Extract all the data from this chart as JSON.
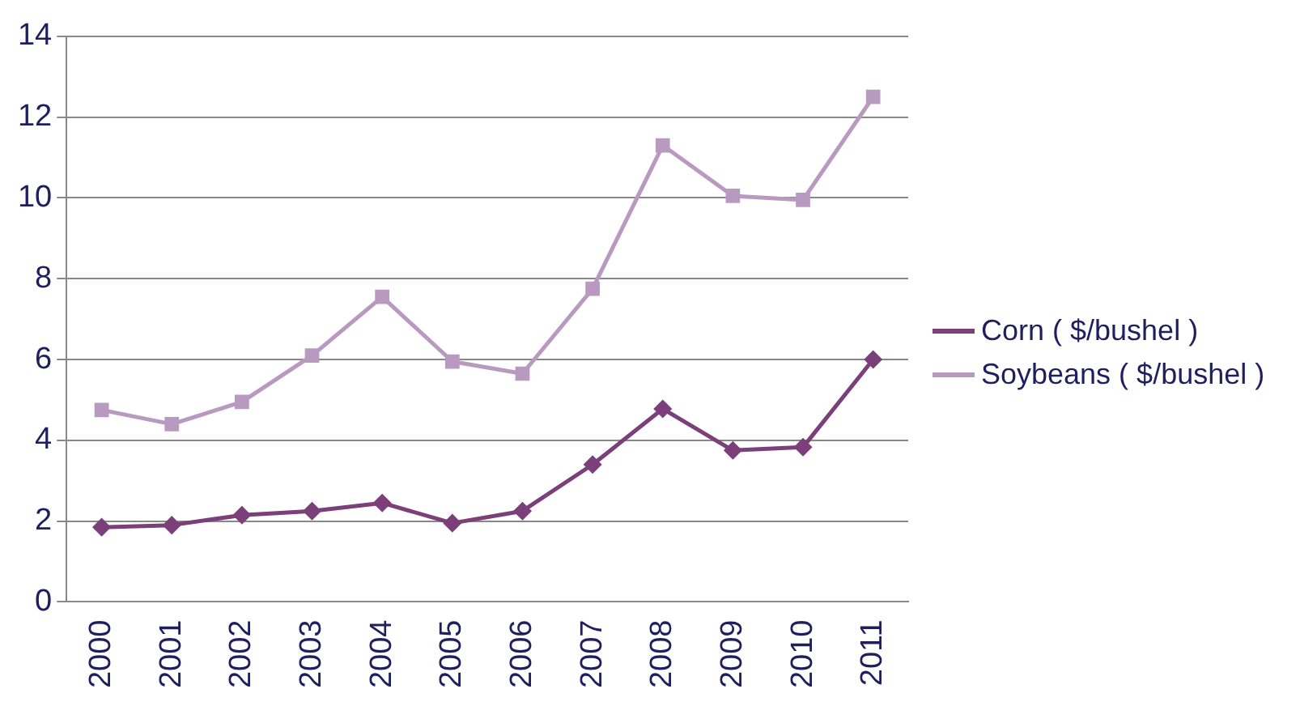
{
  "chart_data": {
    "type": "line",
    "categories": [
      "2000",
      "2001",
      "2002",
      "2003",
      "2004",
      "2005",
      "2006",
      "2007",
      "2008",
      "2009",
      "2010",
      "2011"
    ],
    "series": [
      {
        "name": "Corn ( $/bushel )",
        "color": "#7b3f7a",
        "marker": "diamond",
        "values": [
          1.85,
          1.9,
          2.15,
          2.25,
          2.45,
          1.95,
          2.25,
          3.4,
          4.78,
          3.75,
          3.83,
          6.0
        ]
      },
      {
        "name": "Soybeans ( $/bushel )",
        "color": "#b89ac0",
        "marker": "square",
        "values": [
          4.75,
          4.4,
          4.95,
          6.1,
          7.55,
          5.95,
          5.65,
          7.75,
          11.3,
          10.05,
          9.95,
          12.5
        ]
      }
    ],
    "ylim": [
      0,
      14
    ],
    "yticks": [
      0,
      2,
      4,
      6,
      8,
      10,
      12,
      14
    ],
    "grid": "y",
    "legend": "right"
  }
}
